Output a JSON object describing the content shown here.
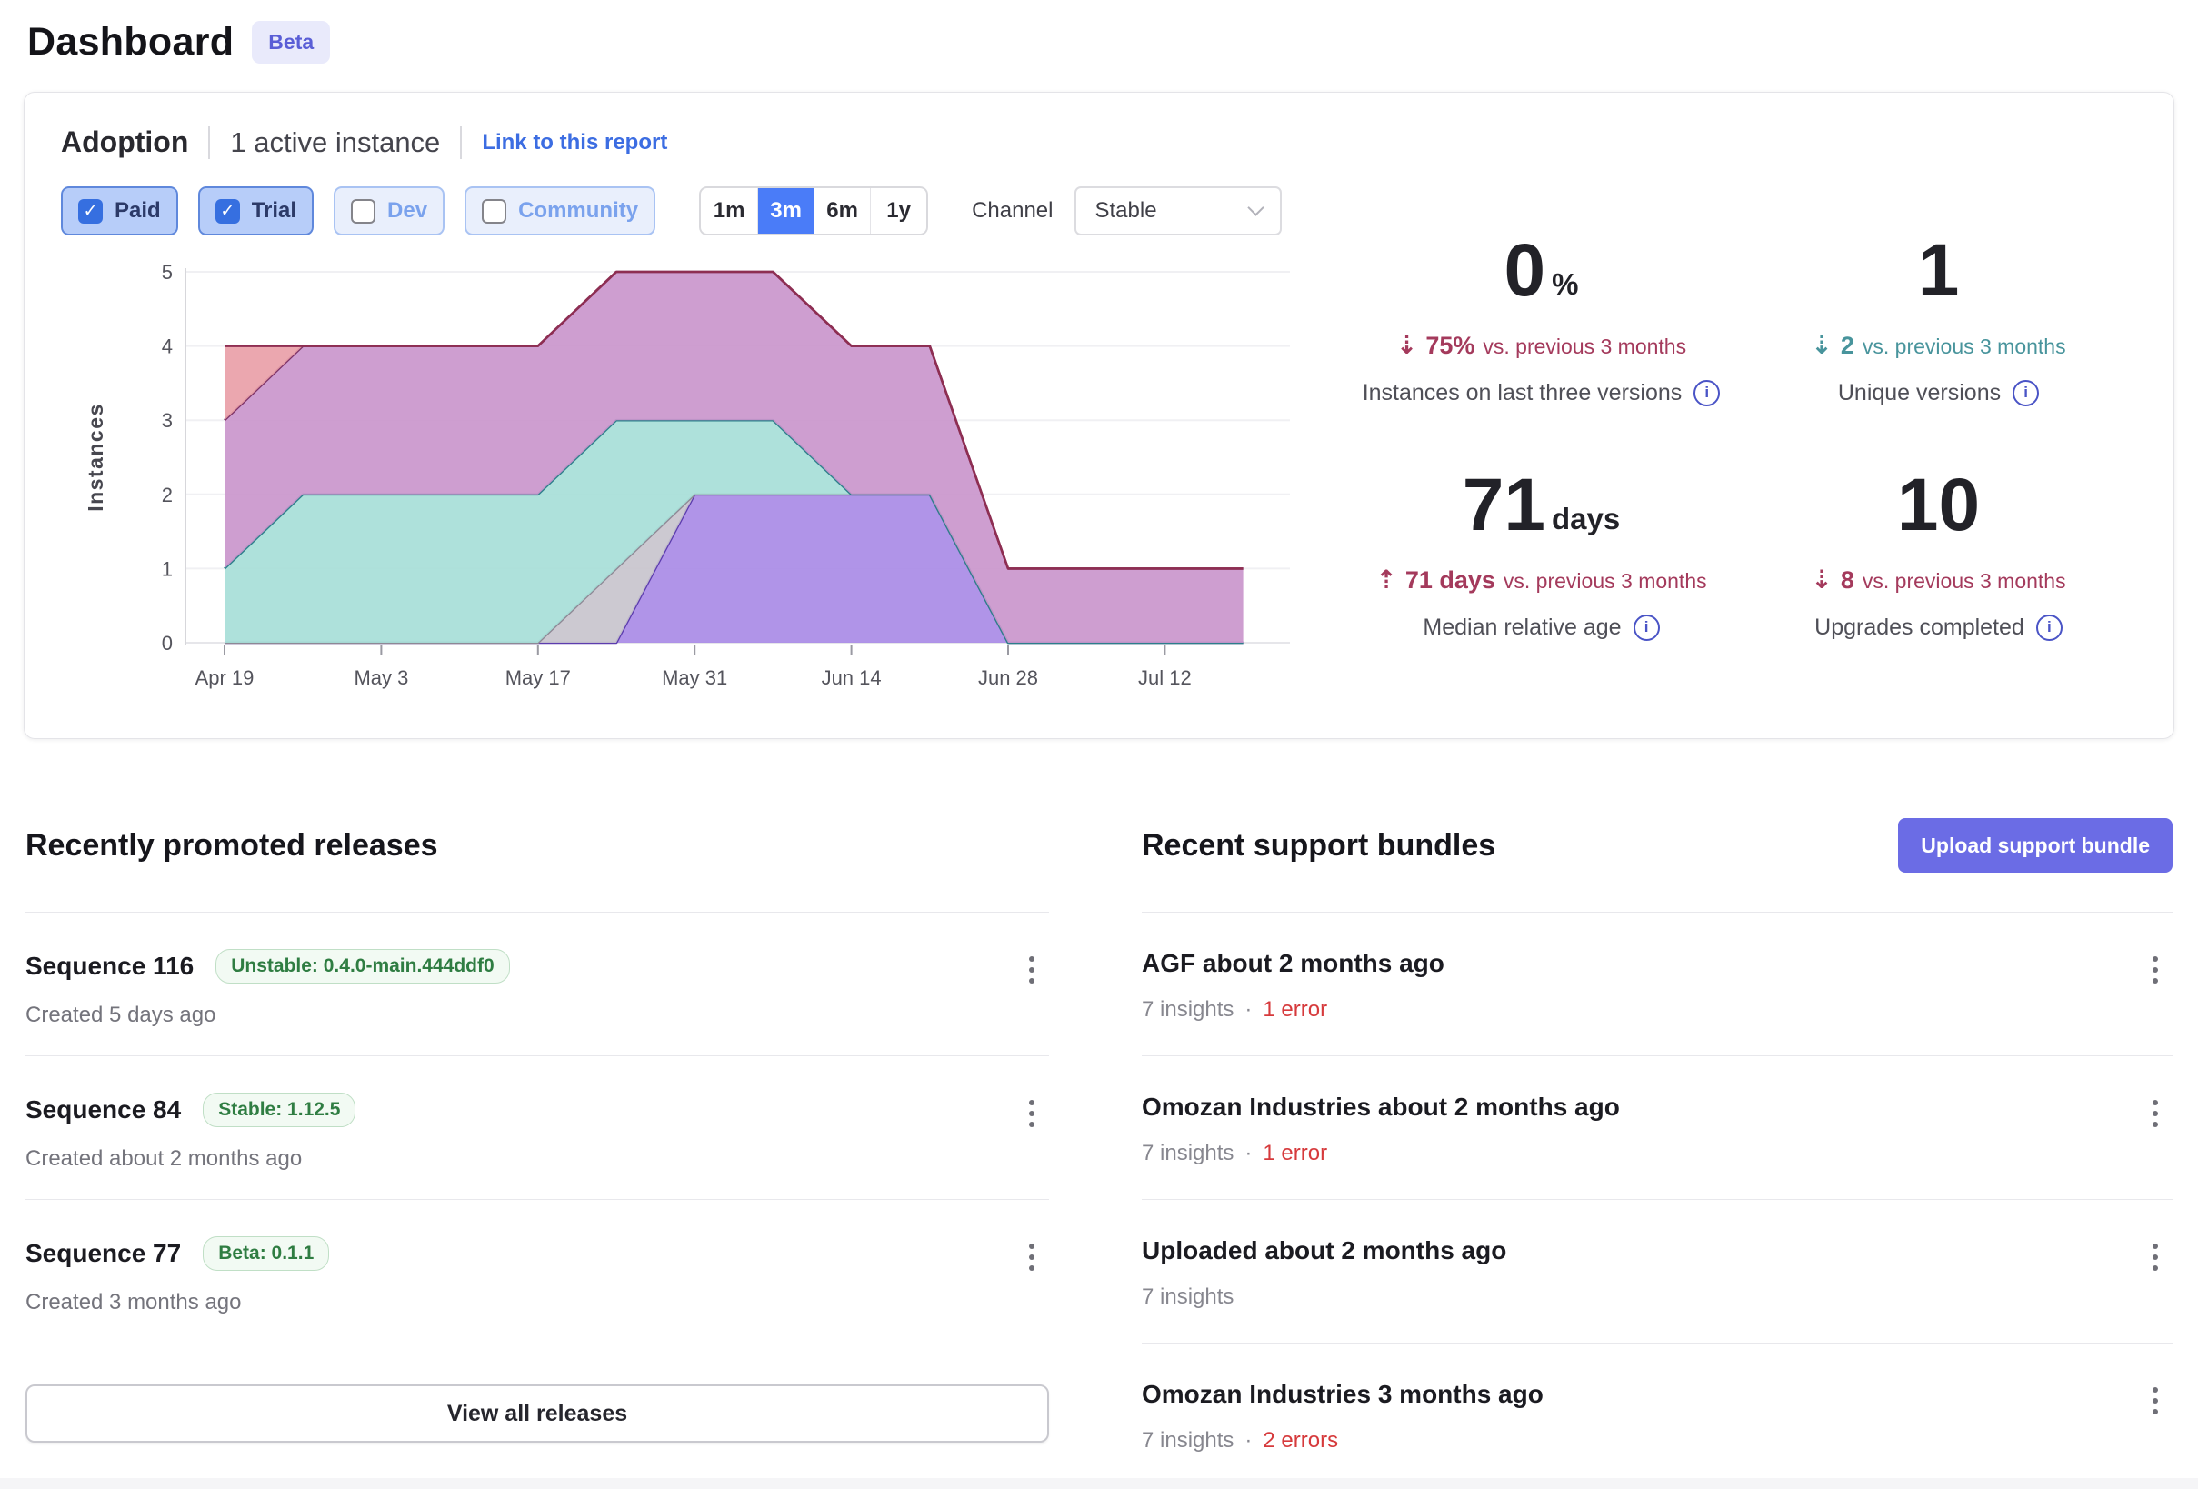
{
  "page": {
    "title": "Dashboard",
    "beta_badge": "Beta"
  },
  "adoption": {
    "title": "Adoption",
    "active_instances": "1 active instance",
    "link_label": "Link to this report",
    "filters": [
      {
        "label": "Paid",
        "checked": true
      },
      {
        "label": "Trial",
        "checked": true
      },
      {
        "label": "Dev",
        "checked": false
      },
      {
        "label": "Community",
        "checked": false
      }
    ],
    "ranges": [
      {
        "label": "1m",
        "active": false
      },
      {
        "label": "3m",
        "active": true
      },
      {
        "label": "6m",
        "active": false
      },
      {
        "label": "1y",
        "active": false
      }
    ],
    "channel_label": "Channel",
    "channel_value": "Stable",
    "stats": [
      {
        "value": "0",
        "unit": "%",
        "trend_direction": "down",
        "trend_value": "75%",
        "trend_rest": "vs. previous 3 months",
        "trend_color": "#a43a5c",
        "label": "Instances on last three versions"
      },
      {
        "value": "1",
        "unit": "",
        "trend_direction": "down",
        "trend_value": "2",
        "trend_rest": "vs. previous 3 months",
        "trend_color": "#48949c",
        "label": "Unique versions"
      },
      {
        "value": "71",
        "unit": "days",
        "trend_direction": "up",
        "trend_value": "71 days",
        "trend_rest": "vs. previous 3 months",
        "trend_color": "#a43a5c",
        "label": "Median relative age"
      },
      {
        "value": "10",
        "unit": "",
        "trend_direction": "down",
        "trend_value": "8",
        "trend_rest": "vs. previous 3 months",
        "trend_color": "#a43a5c",
        "label": "Upgrades completed"
      }
    ]
  },
  "chart_data": {
    "type": "area",
    "stacked": true,
    "title": "",
    "xlabel": "",
    "ylabel": "Instances",
    "ylim": [
      0,
      5
    ],
    "y_ticks": [
      0,
      1,
      2,
      3,
      4,
      5
    ],
    "grid": true,
    "legend": "none",
    "x": [
      "Apr 19",
      "Apr 26",
      "May 3",
      "May 10",
      "May 17",
      "May 24",
      "May 31",
      "Jun 7",
      "Jun 14",
      "Jun 21",
      "Jun 28",
      "Jul 5",
      "Jul 12",
      "Jul 19"
    ],
    "x_tick_labels": [
      "Apr 19",
      "May 3",
      "May 17",
      "May 31",
      "Jun 14",
      "Jun 28",
      "Jul 12"
    ],
    "x_tick_indices": [
      0,
      2,
      4,
      6,
      8,
      10,
      12
    ],
    "series": [
      {
        "name": "version-band-purple",
        "fill": "#a98be6",
        "stroke": "#5c3cae",
        "values": [
          0,
          0,
          0,
          0,
          0,
          0,
          2,
          2,
          2,
          2,
          0,
          0,
          0,
          0
        ]
      },
      {
        "name": "version-band-gray",
        "fill": "#c8c4cd",
        "stroke": "#8e8895",
        "values": [
          0,
          0,
          0,
          0,
          0,
          1,
          0,
          0,
          0,
          0,
          0,
          0,
          0,
          0
        ]
      },
      {
        "name": "version-band-teal",
        "fill": "#a7ded8",
        "stroke": "#2c7f8b",
        "values": [
          1,
          2,
          2,
          2,
          2,
          2,
          1,
          1,
          0,
          0,
          0,
          0,
          0,
          0
        ]
      },
      {
        "name": "version-band-magenta",
        "fill": "#ca96cc",
        "stroke": "#7c3266",
        "values": [
          2,
          2,
          2,
          2,
          2,
          2,
          2,
          2,
          2,
          2,
          1,
          1,
          1,
          1
        ]
      },
      {
        "name": "version-band-salmon",
        "fill": "#e9a0a8",
        "stroke": "#8e2e52",
        "values": [
          1,
          0,
          0,
          0,
          0,
          0,
          0,
          0,
          0,
          0,
          0,
          0,
          0,
          0
        ]
      }
    ]
  },
  "releases": {
    "heading": "Recently promoted releases",
    "view_all_label": "View all releases",
    "items": [
      {
        "title": "Sequence 116",
        "badge": "Unstable: 0.4.0-main.444ddf0",
        "created": "Created 5 days ago"
      },
      {
        "title": "Sequence 84",
        "badge": "Stable: 1.12.5",
        "created": "Created about 2 months ago"
      },
      {
        "title": "Sequence 77",
        "badge": "Beta: 0.1.1",
        "created": "Created 3 months ago"
      }
    ]
  },
  "bundles": {
    "heading": "Recent support bundles",
    "upload_label": "Upload support bundle",
    "items": [
      {
        "title": "AGF about 2 months ago",
        "insights": "7 insights",
        "error": "1 error"
      },
      {
        "title": "Omozan Industries about 2 months ago",
        "insights": "7 insights",
        "error": "1 error"
      },
      {
        "title": "Uploaded about 2 months ago",
        "insights": "7 insights",
        "error": ""
      },
      {
        "title": "Omozan Industries 3 months ago",
        "insights": "7 insights",
        "error": "2 errors"
      }
    ]
  }
}
